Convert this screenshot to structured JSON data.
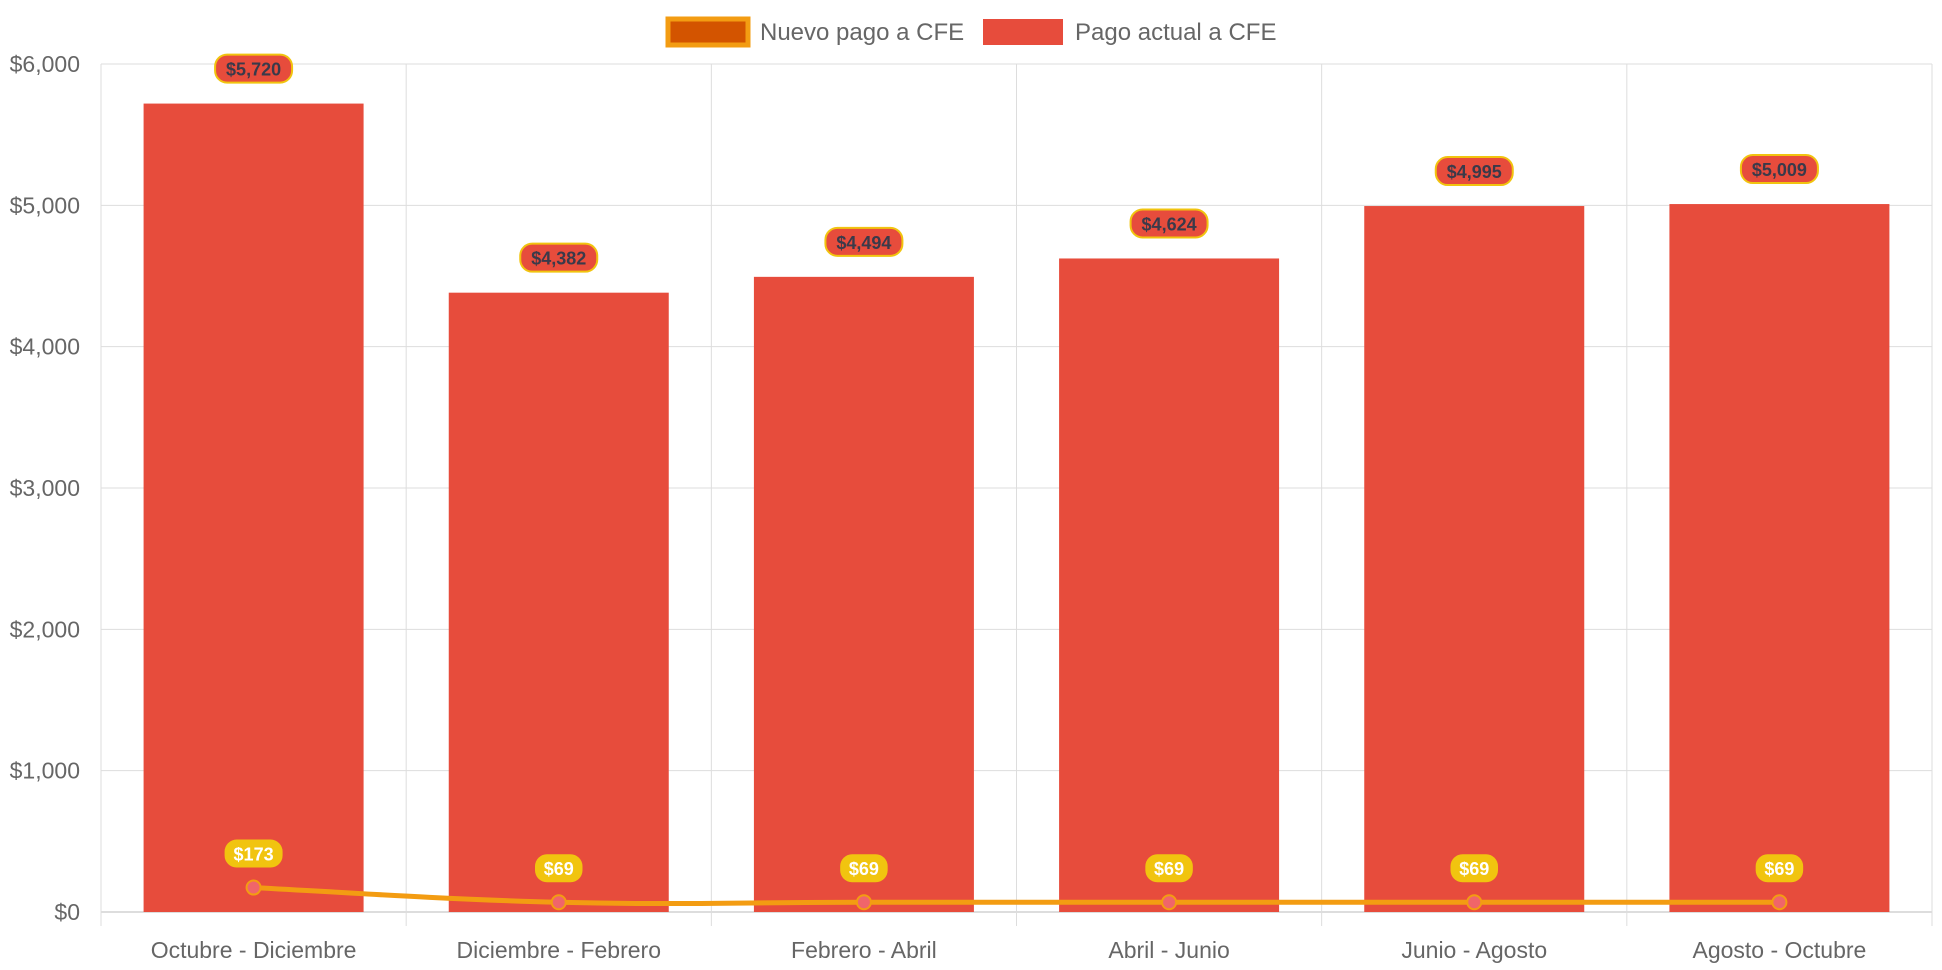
{
  "chart_data": {
    "type": "bar",
    "categories": [
      "Octubre - Diciembre",
      "Diciembre - Febrero",
      "Febrero - Abril",
      "Abril - Junio",
      "Junio - Agosto",
      "Agosto - Octubre"
    ],
    "series": [
      {
        "name": "Nuevo pago a CFE",
        "type": "line",
        "values": [
          173,
          69,
          69,
          69,
          69,
          69
        ],
        "labels": [
          "$173",
          "$69",
          "$69",
          "$69",
          "$69",
          "$69"
        ],
        "color": "#f39c12",
        "point_color": "#f0656a",
        "legend_fill": "#d35400"
      },
      {
        "name": "Pago actual a CFE",
        "type": "bar",
        "values": [
          5720,
          4382,
          4494,
          4624,
          4995,
          5009
        ],
        "labels": [
          "$5,720",
          "$4,382",
          "$4,494",
          "$4,624",
          "$4,995",
          "$5,009"
        ],
        "color": "#e74c3c"
      }
    ],
    "ylim": [
      0,
      6000
    ],
    "yticks": [
      0,
      1000,
      2000,
      3000,
      4000,
      5000,
      6000
    ],
    "ytick_labels": [
      "$0",
      "$1,000",
      "$2,000",
      "$3,000",
      "$4,000",
      "$5,000",
      "$6,000"
    ],
    "xlabel": "",
    "ylabel": "",
    "grid": true,
    "legend_position": "top-center",
    "label_badge_color": "#f1c40f",
    "gridline_color": "#dddddd"
  }
}
